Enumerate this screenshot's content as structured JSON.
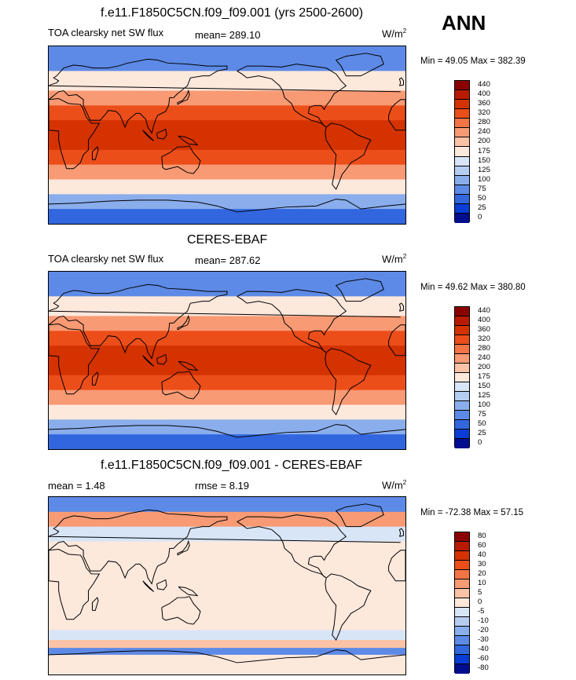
{
  "season": "ANN",
  "panels": [
    {
      "title": "f.e11.F1850C5CN.f09_f09.001 (yrs 2500-2600)",
      "left_label": "TOA clearsky net SW flux",
      "stat_label": "mean=",
      "stat_value": "289.10",
      "stat2_label": "",
      "stat2_value": "",
      "units": "W/m",
      "units_sup": "2",
      "minmax": "Min =  49.05 Max = 382.39",
      "kind": "abs"
    },
    {
      "title": "CERES-EBAF",
      "left_label": "TOA clearsky net SW flux",
      "stat_label": "mean=",
      "stat_value": "287.62",
      "stat2_label": "",
      "stat2_value": "",
      "units": "W/m",
      "units_sup": "2",
      "minmax": "Min =  49.62 Max = 380.80",
      "kind": "abs"
    },
    {
      "title": "f.e11.F1850C5CN.f09_f09.001 - CERES-EBAF",
      "left_label": "",
      "stat_label": "mean =",
      "stat_value": "1.48",
      "stat2_label": "rmse =",
      "stat2_value": "8.19",
      "units": "W/m",
      "units_sup": "2",
      "minmax": "Min = -72.38 Max =  57.15",
      "kind": "diff"
    }
  ],
  "chart_data": [
    {
      "type": "heatmap",
      "title": "f.e11.F1850C5CN.f09_f09.001 (yrs 2500-2600)",
      "variable": "TOA clearsky net SW flux",
      "units": "W/m2",
      "mean": 289.1,
      "min": 49.05,
      "max": 382.39,
      "colorbar_levels": [
        440,
        400,
        360,
        320,
        280,
        240,
        200,
        175,
        150,
        125,
        100,
        75,
        50,
        25,
        0
      ],
      "colorbar_colors": [
        "#8b0000",
        "#b81a00",
        "#d43200",
        "#ec4e1a",
        "#f57446",
        "#f89a74",
        "#fbc3a6",
        "#fde8dc",
        "#d8e5f7",
        "#b6cdf2",
        "#8aaeec",
        "#5d8ae6",
        "#3266df",
        "#0a3cd6",
        "#000d8f"
      ],
      "zonal_bands": [
        {
          "lat_from": 90,
          "lat_to": 65,
          "value": 90
        },
        {
          "lat_from": 65,
          "lat_to": 45,
          "value": 190
        },
        {
          "lat_from": 45,
          "lat_to": 30,
          "value": 260
        },
        {
          "lat_from": 30,
          "lat_to": 15,
          "value": 330
        },
        {
          "lat_from": 15,
          "lat_to": -15,
          "value": 370
        },
        {
          "lat_from": -15,
          "lat_to": -30,
          "value": 335
        },
        {
          "lat_from": -30,
          "lat_to": -45,
          "value": 270
        },
        {
          "lat_from": -45,
          "lat_to": -60,
          "value": 190
        },
        {
          "lat_from": -60,
          "lat_to": -75,
          "value": 110
        },
        {
          "lat_from": -75,
          "lat_to": -90,
          "value": 60
        }
      ]
    },
    {
      "type": "heatmap",
      "title": "CERES-EBAF",
      "variable": "TOA clearsky net SW flux",
      "units": "W/m2",
      "mean": 287.62,
      "min": 49.62,
      "max": 380.8,
      "colorbar_levels": [
        440,
        400,
        360,
        320,
        280,
        240,
        200,
        175,
        150,
        125,
        100,
        75,
        50,
        25,
        0
      ],
      "colorbar_colors": [
        "#8b0000",
        "#b81a00",
        "#d43200",
        "#ec4e1a",
        "#f57446",
        "#f89a74",
        "#fbc3a6",
        "#fde8dc",
        "#d8e5f7",
        "#b6cdf2",
        "#8aaeec",
        "#5d8ae6",
        "#3266df",
        "#0a3cd6",
        "#000d8f"
      ],
      "zonal_bands": [
        {
          "lat_from": 90,
          "lat_to": 65,
          "value": 90
        },
        {
          "lat_from": 65,
          "lat_to": 45,
          "value": 190
        },
        {
          "lat_from": 45,
          "lat_to": 30,
          "value": 260
        },
        {
          "lat_from": 30,
          "lat_to": 15,
          "value": 330
        },
        {
          "lat_from": 15,
          "lat_to": -15,
          "value": 370
        },
        {
          "lat_from": -15,
          "lat_to": -30,
          "value": 335
        },
        {
          "lat_from": -30,
          "lat_to": -45,
          "value": 270
        },
        {
          "lat_from": -45,
          "lat_to": -60,
          "value": 190
        },
        {
          "lat_from": -60,
          "lat_to": -75,
          "value": 110
        },
        {
          "lat_from": -75,
          "lat_to": -90,
          "value": 60
        }
      ]
    },
    {
      "type": "heatmap",
      "title": "f.e11.F1850C5CN.f09_f09.001 - CERES-EBAF",
      "units": "W/m2",
      "mean": 1.48,
      "rmse": 8.19,
      "min": -72.38,
      "max": 57.15,
      "colorbar_levels": [
        80,
        60,
        40,
        30,
        20,
        10,
        5,
        0,
        -5,
        -10,
        -20,
        -30,
        -40,
        -60,
        -80
      ],
      "colorbar_colors": [
        "#8b0000",
        "#b81a00",
        "#d43200",
        "#ec4e1a",
        "#f57446",
        "#f89a74",
        "#fbc3a6",
        "#fde8dc",
        "#d8e5f7",
        "#b6cdf2",
        "#8aaeec",
        "#5d8ae6",
        "#3266df",
        "#0a3cd6",
        "#000d8f"
      ],
      "zonal_bands": [
        {
          "lat_from": 90,
          "lat_to": 75,
          "value": -30
        },
        {
          "lat_from": 75,
          "lat_to": 60,
          "value": 12
        },
        {
          "lat_from": 60,
          "lat_to": 45,
          "value": -4
        },
        {
          "lat_from": 45,
          "lat_to": -45,
          "value": 3
        },
        {
          "lat_from": -45,
          "lat_to": -55,
          "value": -4
        },
        {
          "lat_from": -55,
          "lat_to": -63,
          "value": 6
        },
        {
          "lat_from": -63,
          "lat_to": -70,
          "value": -30
        },
        {
          "lat_from": -70,
          "lat_to": -90,
          "value": 2
        }
      ]
    }
  ]
}
